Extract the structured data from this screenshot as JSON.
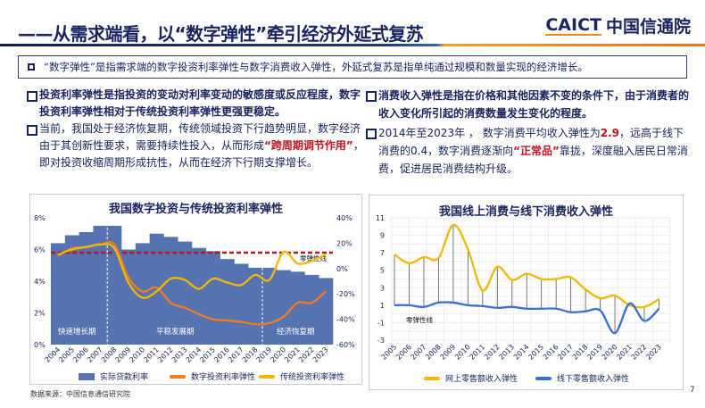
{
  "header": {
    "title": "——从需求端看，以“数字弹性”牵引经济外延式复苏",
    "logo_en": "CAICT",
    "logo_cn": "中国信通院"
  },
  "definition": "“数字弹性”是指需求端的数字投资利率弹性与数字消费收入弹性，外延式复苏是指单纯通过规模和数量实现的经济增长。",
  "left_text": {
    "p1": "投资利率弹性是指投资的变动对利率变动的敏感度或反应程度，数字投资利率弹性相对于传统投资利率弹性更强更稳定。",
    "p2a": "当前，我国处于经济恢复期，传统领域投资下行趋势明显，数字经济由于其创新性要求，需要持续性投入，从而形成",
    "p2b": "“跨周期调节作用”",
    "p2c": "，即对投资收缩周期形成抗性，从而在经济下行期支撑增长。"
  },
  "right_text": {
    "p1": "消费收入弹性是指在价格和其他因素不变的条件下，由于消费者的收入变化所引起的消费数量发生变化的程度。",
    "p2a": "2014年至2023年 ， 数字消费平均收入弹性为",
    "p2b": "2.9",
    "p2c": "，远高于线下消费的0.4，数字消费逐渐向",
    "p2d": "“正常品”",
    "p2e": "靠拢，深度融入居民日常消费，促进居民消费结构升级。"
  },
  "source": "数据来源：中国信息通信研究院",
  "page_number": "7",
  "colors": {
    "bar": "#5473b0",
    "orange": "#f07b22",
    "yellow": "#f5b800",
    "blue": "#3a6fd0",
    "navy": "#1a2560",
    "red": "#c0141c"
  },
  "chart_data": [
    {
      "type": "bar+line",
      "title": "我国数字投资与传统投资利率弹性",
      "categories": [
        "2004",
        "2005",
        "2006",
        "2007",
        "2008",
        "2009",
        "2010",
        "2011",
        "2012",
        "2013",
        "2014",
        "2015",
        "2016",
        "2017",
        "2018",
        "2019",
        "2020",
        "2021",
        "2022",
        "2023"
      ],
      "left_ylim": [
        0,
        8
      ],
      "left_ticks": [
        "0%",
        "2%",
        "4%",
        "6%",
        "8%"
      ],
      "right_ylim": [
        -60,
        40
      ],
      "right_ticks": [
        "-60%",
        "-40%",
        "-20%",
        "0%",
        "20%",
        "40%"
      ],
      "series": [
        {
          "name": "实际贷款利率",
          "axis": "left",
          "kind": "bar",
          "values": [
            6.4,
            6.9,
            7.1,
            7.5,
            7.5,
            6.0,
            6.4,
            7.0,
            6.8,
            6.5,
            6.1,
            5.9,
            5.4,
            5.1,
            4.85,
            4.85,
            4.7,
            4.6,
            4.4,
            4.2
          ]
        },
        {
          "name": "数字投资利率弹性",
          "axis": "right",
          "kind": "line",
          "values": [
            10,
            16,
            17,
            19,
            19,
            -7,
            -18,
            -15,
            -27,
            -31,
            -36,
            -40,
            -41,
            -42,
            -44,
            -43,
            -38,
            -27,
            -27,
            -18
          ]
        },
        {
          "name": "传统投资利率弹性",
          "axis": "right",
          "kind": "line",
          "values": [
            11,
            15,
            17,
            19,
            16,
            -11,
            -23,
            -18,
            -8,
            -9,
            -16,
            -8,
            -11,
            -13,
            -5,
            -9,
            13,
            4,
            6,
            11
          ]
        }
      ],
      "zero_line": {
        "label": "零弹性线",
        "left_value": 5.8
      },
      "periods": [
        "快速增长期",
        "平稳发展期",
        "经济恢复期"
      ],
      "period_dividers": [
        "2007/2008",
        "2018"
      ]
    },
    {
      "type": "line",
      "title": "我国线上消费与线下消费收入弹性",
      "categories": [
        "2005",
        "2006",
        "2007",
        "2008",
        "2009",
        "2010",
        "2011",
        "2012",
        "2013",
        "2014",
        "2015",
        "2016",
        "2017",
        "2018",
        "2019",
        "2020",
        "2021",
        "2022",
        "2023"
      ],
      "ylim": [
        -3,
        11
      ],
      "y_ticks": [
        "-3",
        "-1",
        "1",
        "3",
        "5",
        "7",
        "9",
        "11"
      ],
      "series": [
        {
          "name": "网上零售额收入弹性",
          "values": [
            6.8,
            5.8,
            6.5,
            6.4,
            10.2,
            7.4,
            2.7,
            5.4,
            3.9,
            4.6,
            4.0,
            4.0,
            4.2,
            2.8,
            1.8,
            2.1,
            1.0,
            0.8,
            1.7
          ]
        },
        {
          "name": "线下零售额收入弹性",
          "values": [
            1.0,
            1.0,
            0.8,
            1.3,
            1.3,
            1.0,
            0.9,
            0.7,
            0.8,
            0.6,
            0.6,
            0.6,
            0.2,
            0.3,
            0.4,
            -2.2,
            1.2,
            -0.8,
            0.6
          ]
        }
      ],
      "annotation": "零弹性线"
    }
  ]
}
